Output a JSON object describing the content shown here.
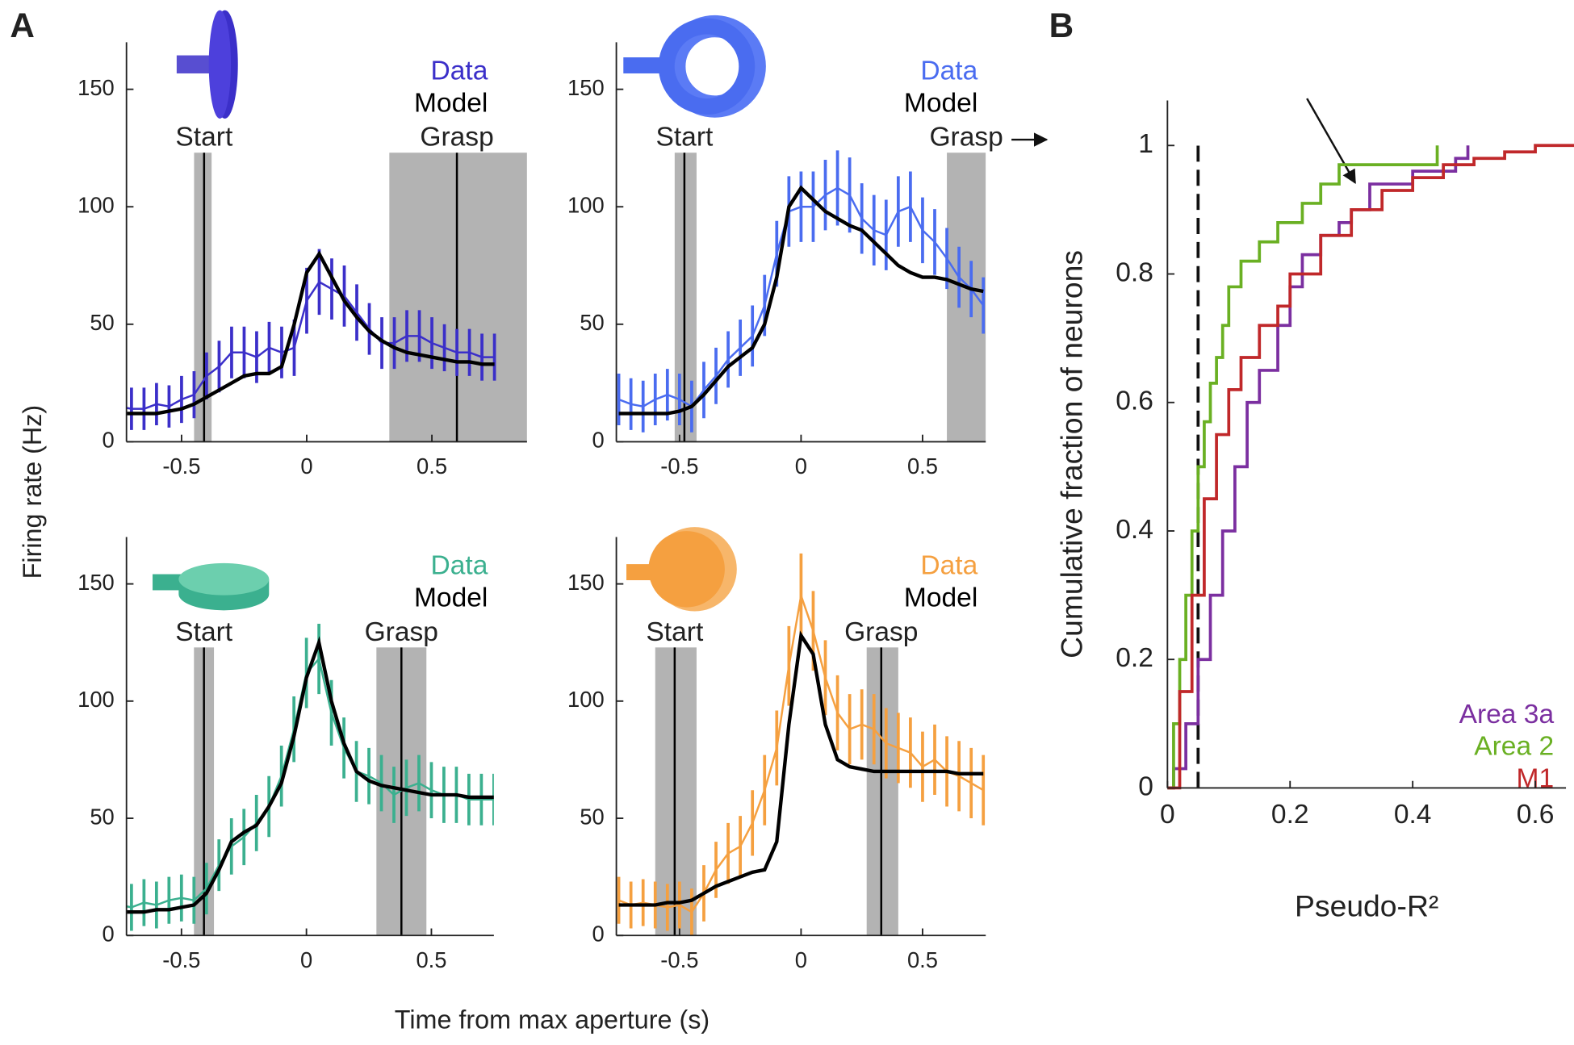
{
  "figure": {
    "panel_labels": [
      "A",
      "B"
    ],
    "ylabel": "Firing rate (Hz)",
    "xlabel": "Time from max aperture (s)"
  },
  "chart_data": [
    {
      "type": "line",
      "x": [
        -0.75,
        -0.7,
        -0.65,
        -0.6,
        -0.55,
        -0.5,
        -0.45,
        -0.4,
        -0.35,
        -0.3,
        -0.25,
        -0.2,
        -0.15,
        -0.1,
        -0.05,
        0,
        0.05,
        0.1,
        0.15,
        0.2,
        0.25,
        0.3,
        0.35,
        0.4,
        0.45,
        0.5,
        0.55,
        0.6,
        0.65,
        0.7,
        0.75
      ],
      "series": [
        {
          "name": "Data",
          "color": "#3b2fc9",
          "values": [
            15,
            14,
            14,
            16,
            15,
            18,
            20,
            28,
            32,
            38,
            38,
            36,
            40,
            38,
            40,
            60,
            68,
            65,
            62,
            55,
            48,
            42,
            42,
            45,
            45,
            42,
            40,
            38,
            38,
            36,
            36
          ],
          "errors": [
            10,
            9,
            9,
            9,
            9,
            10,
            10,
            10,
            11,
            11,
            11,
            11,
            11,
            11,
            12,
            14,
            14,
            13,
            13,
            12,
            11,
            11,
            11,
            11,
            11,
            11,
            10,
            10,
            10,
            10,
            10
          ]
        },
        {
          "name": "Model",
          "color": "#000000",
          "values": [
            12,
            12,
            12,
            12,
            13,
            14,
            16,
            19,
            22,
            25,
            28,
            29,
            29,
            32,
            50,
            72,
            80,
            70,
            60,
            53,
            47,
            43,
            40,
            38,
            37,
            36,
            35,
            34,
            34,
            33,
            33
          ]
        }
      ],
      "xlim": [
        -0.72,
        0.88
      ],
      "ylim": [
        0,
        170
      ],
      "xticks": [
        -0.5,
        0,
        0.5
      ],
      "yticks": [
        0,
        50,
        100,
        150
      ],
      "events": [
        {
          "label": "Start",
          "value": -0.41,
          "band": [
            -0.45,
            -0.38
          ]
        },
        {
          "label": "Grasp",
          "value": 0.6,
          "band": [
            0.33,
            0.88
          ]
        }
      ]
    },
    {
      "type": "line",
      "x": [
        -0.75,
        -0.7,
        -0.65,
        -0.6,
        -0.55,
        -0.5,
        -0.45,
        -0.4,
        -0.35,
        -0.3,
        -0.25,
        -0.2,
        -0.15,
        -0.1,
        -0.05,
        0,
        0.05,
        0.1,
        0.15,
        0.2,
        0.25,
        0.3,
        0.35,
        0.4,
        0.45,
        0.5,
        0.55,
        0.6,
        0.65,
        0.7,
        0.75
      ],
      "series": [
        {
          "name": "Data",
          "color": "#4a6cf0",
          "values": [
            18,
            16,
            15,
            18,
            20,
            18,
            15,
            22,
            28,
            35,
            40,
            45,
            58,
            80,
            98,
            100,
            100,
            105,
            108,
            105,
            95,
            90,
            88,
            98,
            100,
            90,
            85,
            78,
            70,
            65,
            58
          ],
          "errors": [
            11,
            11,
            11,
            11,
            11,
            11,
            11,
            12,
            12,
            12,
            12,
            13,
            13,
            14,
            15,
            15,
            15,
            15,
            16,
            16,
            15,
            15,
            15,
            15,
            15,
            14,
            14,
            13,
            13,
            12,
            12
          ]
        },
        {
          "name": "Model",
          "color": "#000000",
          "values": [
            12,
            12,
            12,
            12,
            12,
            13,
            15,
            20,
            26,
            32,
            36,
            40,
            50,
            70,
            100,
            108,
            103,
            98,
            95,
            92,
            90,
            85,
            80,
            75,
            72,
            70,
            70,
            69,
            67,
            65,
            64
          ]
        }
      ],
      "xlim": [
        -0.76,
        0.76
      ],
      "ylim": [
        0,
        170
      ],
      "xticks": [
        -0.5,
        0,
        0.5
      ],
      "yticks": [
        0,
        50,
        100,
        150
      ],
      "events": [
        {
          "label": "Start",
          "value": -0.48,
          "band": [
            -0.52,
            -0.43
          ]
        },
        {
          "label": "Grasp",
          "band": [
            0.6,
            0.76
          ]
        }
      ]
    },
    {
      "type": "line",
      "x": [
        -0.75,
        -0.7,
        -0.65,
        -0.6,
        -0.55,
        -0.5,
        -0.45,
        -0.4,
        -0.35,
        -0.3,
        -0.25,
        -0.2,
        -0.15,
        -0.1,
        -0.05,
        0,
        0.05,
        0.1,
        0.15,
        0.2,
        0.25,
        0.3,
        0.35,
        0.4,
        0.45,
        0.5,
        0.55,
        0.6,
        0.65,
        0.7,
        0.75
      ],
      "series": [
        {
          "name": "Data",
          "color": "#3bb08f",
          "values": [
            13,
            12,
            14,
            13,
            15,
            16,
            15,
            20,
            30,
            38,
            42,
            48,
            55,
            68,
            88,
            112,
            118,
            95,
            80,
            70,
            68,
            65,
            60,
            63,
            65,
            62,
            60,
            60,
            58,
            58,
            58
          ],
          "errors": [
            10,
            10,
            10,
            10,
            10,
            10,
            10,
            11,
            11,
            12,
            12,
            12,
            13,
            13,
            14,
            15,
            15,
            14,
            13,
            13,
            12,
            12,
            12,
            12,
            12,
            12,
            12,
            12,
            11,
            11,
            11
          ]
        },
        {
          "name": "Model",
          "color": "#000000",
          "values": [
            10,
            10,
            10,
            11,
            11,
            12,
            13,
            18,
            28,
            40,
            44,
            47,
            55,
            65,
            85,
            110,
            125,
            100,
            82,
            70,
            66,
            64,
            63,
            62,
            61,
            60,
            60,
            60,
            59,
            59,
            59
          ]
        }
      ],
      "xlim": [
        -0.72,
        0.75
      ],
      "ylim": [
        0,
        170
      ],
      "xticks": [
        -0.5,
        0,
        0.5
      ],
      "yticks": [
        0,
        50,
        100,
        150
      ],
      "events": [
        {
          "label": "Start",
          "value": -0.41,
          "band": [
            -0.45,
            -0.37
          ]
        },
        {
          "label": "Grasp",
          "value": 0.38,
          "band": [
            0.28,
            0.48
          ]
        }
      ]
    },
    {
      "type": "line",
      "x": [
        -0.75,
        -0.7,
        -0.65,
        -0.6,
        -0.55,
        -0.5,
        -0.45,
        -0.4,
        -0.35,
        -0.3,
        -0.25,
        -0.2,
        -0.15,
        -0.1,
        -0.05,
        0,
        0.05,
        0.1,
        0.15,
        0.2,
        0.25,
        0.3,
        0.35,
        0.4,
        0.45,
        0.5,
        0.55,
        0.6,
        0.65,
        0.7,
        0.75
      ],
      "series": [
        {
          "name": "Data",
          "color": "#f5a040",
          "values": [
            15,
            13,
            14,
            13,
            12,
            13,
            10,
            18,
            28,
            35,
            38,
            48,
            62,
            80,
            115,
            145,
            130,
            110,
            95,
            88,
            90,
            88,
            82,
            80,
            78,
            72,
            75,
            70,
            68,
            65,
            62
          ],
          "errors": [
            10,
            10,
            10,
            10,
            10,
            10,
            10,
            12,
            12,
            13,
            13,
            14,
            15,
            16,
            17,
            18,
            17,
            16,
            16,
            15,
            15,
            15,
            15,
            15,
            15,
            15,
            15,
            15,
            15,
            15,
            15
          ]
        },
        {
          "name": "Model",
          "color": "#000000",
          "values": [
            13,
            13,
            13,
            13,
            14,
            14,
            15,
            18,
            21,
            23,
            25,
            27,
            28,
            40,
            90,
            128,
            120,
            90,
            75,
            72,
            71,
            70,
            70,
            70,
            70,
            70,
            70,
            70,
            69,
            69,
            69
          ]
        }
      ],
      "xlim": [
        -0.76,
        0.76
      ],
      "ylim": [
        0,
        170
      ],
      "xticks": [
        -0.5,
        0,
        0.5
      ],
      "yticks": [
        0,
        50,
        100,
        150
      ],
      "events": [
        {
          "label": "Start",
          "value": -0.52,
          "band": [
            -0.6,
            -0.43
          ]
        },
        {
          "label": "Grasp",
          "value": 0.33,
          "band": [
            0.27,
            0.4
          ]
        }
      ]
    },
    {
      "type": "step",
      "xlabel": "Pseudo-R²",
      "ylabel": "Cumulative fraction of neurons",
      "series": [
        {
          "name": "Area 3a",
          "color": "#7b2fa0",
          "x": [
            0,
            0.01,
            0.03,
            0.05,
            0.07,
            0.09,
            0.11,
            0.13,
            0.15,
            0.18,
            0.2,
            0.22,
            0.25,
            0.28,
            0.3,
            0.33,
            0.4,
            0.47,
            0.49
          ],
          "values": [
            0,
            0.03,
            0.1,
            0.2,
            0.3,
            0.4,
            0.5,
            0.6,
            0.65,
            0.72,
            0.78,
            0.83,
            0.86,
            0.88,
            0.9,
            0.94,
            0.96,
            0.98,
            1
          ]
        },
        {
          "name": "Area 2",
          "color": "#6ab023",
          "x": [
            0,
            0.01,
            0.02,
            0.03,
            0.04,
            0.05,
            0.06,
            0.07,
            0.08,
            0.09,
            0.1,
            0.12,
            0.15,
            0.18,
            0.22,
            0.25,
            0.28,
            0.3,
            0.44
          ],
          "values": [
            0,
            0.1,
            0.2,
            0.3,
            0.4,
            0.5,
            0.57,
            0.63,
            0.67,
            0.72,
            0.78,
            0.82,
            0.85,
            0.88,
            0.91,
            0.94,
            0.97,
            0.97,
            1
          ]
        },
        {
          "name": "M1",
          "color": "#c0282a",
          "x": [
            0,
            0.02,
            0.04,
            0.06,
            0.08,
            0.1,
            0.12,
            0.15,
            0.18,
            0.2,
            0.25,
            0.3,
            0.35,
            0.4,
            0.45,
            0.5,
            0.55,
            0.6,
            0.67
          ],
          "values": [
            0,
            0.15,
            0.3,
            0.45,
            0.55,
            0.62,
            0.67,
            0.72,
            0.75,
            0.8,
            0.86,
            0.9,
            0.93,
            0.95,
            0.97,
            0.98,
            0.99,
            1,
            1
          ]
        }
      ],
      "reference_line": 0.05,
      "xlim": [
        0,
        0.65
      ],
      "ylim": [
        0,
        1.07
      ],
      "xticks": [
        0,
        0.2,
        0.4,
        0.6
      ],
      "yticks": [
        0,
        0.2,
        0.4,
        0.6,
        0.8,
        1
      ]
    }
  ]
}
